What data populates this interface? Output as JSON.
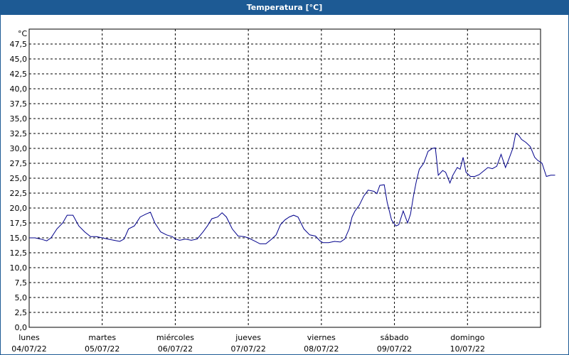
{
  "window": {
    "title": "Temperatura [°C]"
  },
  "chart_data": {
    "type": "line",
    "unit_label": "°C",
    "ylim": [
      0,
      50
    ],
    "yticks": [
      "0,0",
      "2,5",
      "5,0",
      "7,5",
      "10,0",
      "12,5",
      "15,0",
      "17,5",
      "20,0",
      "22,5",
      "25,0",
      "27,5",
      "30,0",
      "32,5",
      "35,0",
      "37,5",
      "40,0",
      "42,5",
      "45,0",
      "47,5"
    ],
    "grid": true,
    "xlim": [
      0,
      7
    ],
    "days": [
      {
        "name": "lunes",
        "date": "04/07/22"
      },
      {
        "name": "martes",
        "date": "05/07/22"
      },
      {
        "name": "miércoles",
        "date": "06/07/22"
      },
      {
        "name": "jueves",
        "date": "07/07/22"
      },
      {
        "name": "viernes",
        "date": "08/07/22"
      },
      {
        "name": "sábado",
        "date": "09/07/22"
      },
      {
        "name": "domingo",
        "date": "10/07/22"
      }
    ],
    "colors": {
      "line": "#00008b",
      "grid": "#000000",
      "background": "#ffffff"
    },
    "series": [
      {
        "points": [
          [
            0.0,
            15.0
          ],
          [
            0.08,
            15.0
          ],
          [
            0.16,
            14.8
          ],
          [
            0.24,
            14.5
          ],
          [
            0.3,
            15.0
          ],
          [
            0.38,
            16.5
          ],
          [
            0.46,
            17.5
          ],
          [
            0.52,
            18.8
          ],
          [
            0.6,
            18.8
          ],
          [
            0.68,
            17.0
          ],
          [
            0.76,
            16.0
          ],
          [
            0.84,
            15.2
          ],
          [
            0.92,
            15.2
          ],
          [
            1.0,
            15.0
          ],
          [
            1.08,
            14.8
          ],
          [
            1.16,
            14.6
          ],
          [
            1.24,
            14.4
          ],
          [
            1.3,
            14.8
          ],
          [
            1.36,
            16.5
          ],
          [
            1.44,
            17.0
          ],
          [
            1.52,
            18.5
          ],
          [
            1.6,
            19.0
          ],
          [
            1.66,
            19.3
          ],
          [
            1.72,
            17.5
          ],
          [
            1.8,
            16.0
          ],
          [
            1.88,
            15.5
          ],
          [
            1.96,
            15.2
          ],
          [
            2.0,
            14.8
          ],
          [
            2.06,
            14.6
          ],
          [
            2.14,
            14.8
          ],
          [
            2.22,
            14.6
          ],
          [
            2.3,
            14.8
          ],
          [
            2.38,
            16.0
          ],
          [
            2.44,
            17.0
          ],
          [
            2.5,
            18.2
          ],
          [
            2.58,
            18.5
          ],
          [
            2.64,
            19.2
          ],
          [
            2.7,
            18.5
          ],
          [
            2.78,
            16.5
          ],
          [
            2.86,
            15.3
          ],
          [
            2.94,
            15.2
          ],
          [
            3.0,
            15.0
          ],
          [
            3.08,
            14.5
          ],
          [
            3.16,
            14.0
          ],
          [
            3.24,
            14.0
          ],
          [
            3.32,
            14.8
          ],
          [
            3.38,
            15.5
          ],
          [
            3.44,
            17.2
          ],
          [
            3.5,
            18.0
          ],
          [
            3.56,
            18.5
          ],
          [
            3.62,
            18.8
          ],
          [
            3.68,
            18.5
          ],
          [
            3.76,
            16.5
          ],
          [
            3.84,
            15.5
          ],
          [
            3.92,
            15.3
          ],
          [
            3.98,
            14.5
          ],
          [
            4.02,
            14.2
          ],
          [
            4.1,
            14.2
          ],
          [
            4.18,
            14.4
          ],
          [
            4.26,
            14.3
          ],
          [
            4.32,
            14.8
          ],
          [
            4.38,
            16.5
          ],
          [
            4.42,
            18.5
          ],
          [
            4.46,
            19.5
          ],
          [
            4.52,
            20.5
          ],
          [
            4.58,
            22.0
          ],
          [
            4.64,
            23.0
          ],
          [
            4.72,
            22.8
          ],
          [
            4.76,
            22.4
          ],
          [
            4.8,
            23.8
          ],
          [
            4.86,
            23.9
          ],
          [
            4.9,
            21.0
          ],
          [
            4.96,
            18.0
          ],
          [
            5.02,
            17.0
          ],
          [
            5.06,
            17.2
          ],
          [
            5.12,
            19.5
          ],
          [
            5.18,
            17.5
          ],
          [
            5.22,
            19.0
          ],
          [
            5.26,
            22.0
          ],
          [
            5.3,
            24.5
          ],
          [
            5.34,
            26.5
          ],
          [
            5.4,
            27.5
          ],
          [
            5.46,
            29.5
          ],
          [
            5.52,
            30.0
          ],
          [
            5.56,
            30.1
          ],
          [
            5.6,
            25.5
          ],
          [
            5.66,
            26.3
          ],
          [
            5.7,
            26.0
          ],
          [
            5.76,
            24.2
          ],
          [
            5.8,
            25.5
          ],
          [
            5.86,
            26.8
          ],
          [
            5.9,
            26.5
          ],
          [
            5.94,
            28.5
          ],
          [
            5.98,
            26.0
          ],
          [
            6.04,
            25.3
          ],
          [
            6.1,
            25.3
          ],
          [
            6.16,
            25.6
          ],
          [
            6.22,
            26.2
          ],
          [
            6.28,
            26.8
          ],
          [
            6.34,
            26.6
          ],
          [
            6.4,
            27.0
          ],
          [
            6.46,
            29.0
          ],
          [
            6.52,
            26.8
          ],
          [
            6.56,
            28.0
          ],
          [
            6.62,
            30.0
          ],
          [
            6.66,
            32.5
          ],
          [
            6.7,
            32.2
          ],
          [
            6.74,
            31.5
          ],
          [
            6.8,
            31.0
          ],
          [
            6.86,
            30.3
          ],
          [
            6.92,
            28.5
          ],
          [
            6.96,
            28.0
          ],
          [
            7.02,
            27.5
          ],
          [
            7.08,
            25.3
          ],
          [
            7.14,
            25.5
          ],
          [
            7.2,
            25.5
          ]
        ]
      }
    ]
  }
}
